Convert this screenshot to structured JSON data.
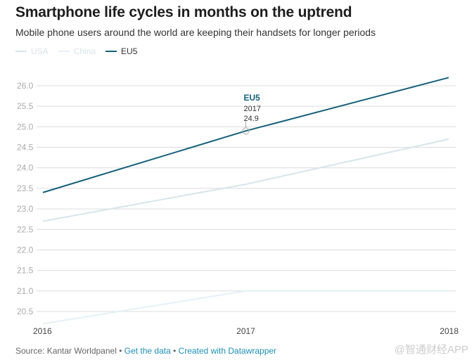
{
  "header": {
    "title": "Smartphone life cycles in months on the uptrend",
    "subtitle": "Mobile phone users around the world are keeping their handsets for longer periods"
  },
  "chart_data": {
    "type": "line",
    "x": [
      2016,
      2017,
      2018
    ],
    "x_tick_labels": [
      "2016",
      "2017",
      "2018"
    ],
    "ylim": [
      20.2,
      26.2
    ],
    "y_ticks": [
      20.5,
      21.0,
      21.5,
      22.0,
      22.5,
      23.0,
      23.5,
      24.0,
      24.5,
      25.0,
      25.5,
      26.0
    ],
    "y_tick_labels": [
      "20.5",
      "21.0",
      "21.5",
      "22.0",
      "22.5",
      "23.0",
      "23.5",
      "24.0",
      "24.5",
      "25.0",
      "25.5",
      "26.0"
    ],
    "grid": true,
    "legend_position": "top-left",
    "series": [
      {
        "name": "USA",
        "values": [
          22.7,
          23.6,
          24.7
        ],
        "color": "#d6e6ea",
        "highlighted": false
      },
      {
        "name": "China",
        "values": [
          20.2,
          21.0,
          21.0
        ],
        "color": "#e3f2f6",
        "highlighted": false
      },
      {
        "name": "EU5",
        "values": [
          23.4,
          24.9,
          26.2
        ],
        "color": "#15607a",
        "highlighted": true
      }
    ],
    "tooltip": {
      "series": "EU5",
      "x_label": "2017",
      "y_label": "24.9",
      "x": 2017,
      "y": 24.9
    }
  },
  "footer": {
    "source": "Source: Kantar Worldpanel",
    "separator": " • ",
    "get_data": "Get the data",
    "created_with": "Created with Datawrapper"
  },
  "watermark": "@智通财经APP"
}
